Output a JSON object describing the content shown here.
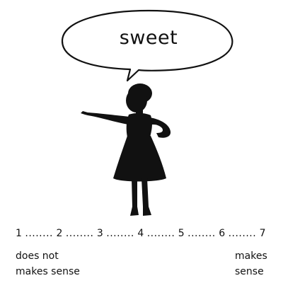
{
  "speech": {
    "word": "sweet"
  },
  "scale": {
    "points": [
      "1",
      "2",
      "3",
      "4",
      "5",
      "6",
      "7"
    ],
    "separator": "........"
  },
  "anchors": {
    "low_line1": "does not",
    "low_line2": "makes sense",
    "high_line1": "makes",
    "high_line2": "sense"
  },
  "colors": {
    "ink": "#111111",
    "background": "#ffffff"
  }
}
